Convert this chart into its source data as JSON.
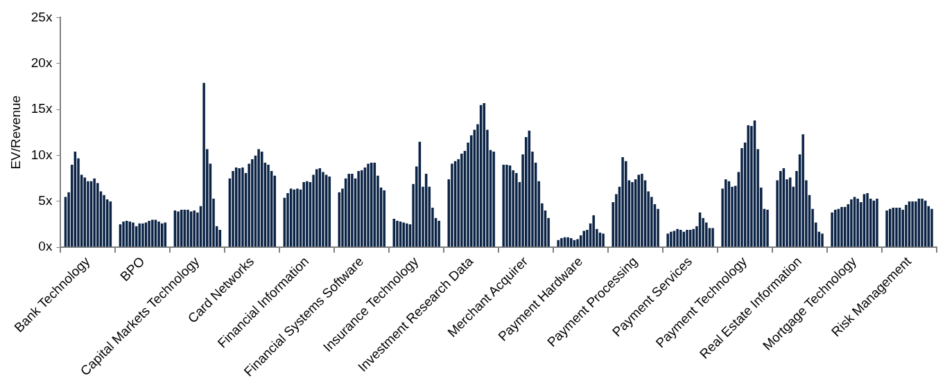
{
  "chart_data": {
    "type": "bar",
    "ylabel": "EV/Revenue",
    "categories": [
      "Bank Technology",
      "BPO",
      "Capital Markets Technology",
      "Card Networks",
      "Financial Information",
      "Financial Systems Software",
      "Insurance Technology",
      "Investment Research Data",
      "Merchant Acquirer",
      "Payment Hardware",
      "Payment Processing",
      "Payment Services",
      "Payment Technology",
      "Real Estate Information",
      "Mortgage Technology",
      "Risk Management"
    ],
    "ylim": [
      0,
      25
    ],
    "yticks": [
      {
        "value": 0,
        "label": "0x"
      },
      {
        "value": 5,
        "label": "5x"
      },
      {
        "value": 10,
        "label": "10x"
      },
      {
        "value": 15,
        "label": "15x"
      },
      {
        "value": 20,
        "label": "20x"
      },
      {
        "value": 25,
        "label": "25x"
      }
    ],
    "grid": false,
    "legend": false,
    "series": [
      {
        "color": "#0b2345",
        "values": [
          5.5,
          2.5,
          4.0,
          7.5,
          5.4,
          6.0,
          3.1,
          7.4,
          9.0,
          0.8,
          4.9,
          1.5,
          6.4,
          7.3,
          3.8,
          4.0
        ]
      },
      {
        "color": "#0b2345",
        "values": [
          6.0,
          2.8,
          3.9,
          8.3,
          5.9,
          6.4,
          2.9,
          9.1,
          9.0,
          1.0,
          5.8,
          1.7,
          7.4,
          8.3,
          4.1,
          4.2
        ]
      },
      {
        "color": "#0b2345",
        "values": [
          9.0,
          2.9,
          4.1,
          8.7,
          6.4,
          7.5,
          2.8,
          9.4,
          8.9,
          1.1,
          6.6,
          1.8,
          7.2,
          8.6,
          4.2,
          4.3
        ]
      },
      {
        "color": "#0b2345",
        "values": [
          10.4,
          2.8,
          4.1,
          8.6,
          6.3,
          8.0,
          2.7,
          9.6,
          8.4,
          1.1,
          9.8,
          2.0,
          6.6,
          7.4,
          4.4,
          4.3
        ]
      },
      {
        "color": "#0b2345",
        "values": [
          9.7,
          2.7,
          4.1,
          8.7,
          6.4,
          8.0,
          2.6,
          10.2,
          8.1,
          1.0,
          9.4,
          1.9,
          6.7,
          7.6,
          4.4,
          4.3
        ]
      },
      {
        "color": "#0b2345",
        "values": [
          7.9,
          2.3,
          3.9,
          8.1,
          6.3,
          7.5,
          2.5,
          10.5,
          7.1,
          0.8,
          7.3,
          1.7,
          8.2,
          6.6,
          4.7,
          4.1
        ]
      },
      {
        "color": "#0b2345",
        "values": [
          7.6,
          2.6,
          4.0,
          9.1,
          7.1,
          8.3,
          6.9,
          11.4,
          10.1,
          0.9,
          7.1,
          1.9,
          10.8,
          8.3,
          5.2,
          4.6
        ]
      },
      {
        "color": "#0b2345",
        "values": [
          7.2,
          2.6,
          3.8,
          9.6,
          7.2,
          8.4,
          8.8,
          12.2,
          12.0,
          1.3,
          7.4,
          1.9,
          11.4,
          10.1,
          5.5,
          5.0
        ]
      },
      {
        "color": "#0b2345",
        "values": [
          7.2,
          2.7,
          4.5,
          10.0,
          7.1,
          8.7,
          11.5,
          12.8,
          12.7,
          1.8,
          7.9,
          2.0,
          13.3,
          12.3,
          5.3,
          5.0
        ]
      },
      {
        "color": "#0b2345",
        "values": [
          7.5,
          2.9,
          17.9,
          10.7,
          7.9,
          9.1,
          6.6,
          13.4,
          10.4,
          1.9,
          8.0,
          2.3,
          13.2,
          7.3,
          4.9,
          5.0
        ]
      },
      {
        "color": "#0b2345",
        "values": [
          7.0,
          3.0,
          10.7,
          10.4,
          8.5,
          9.2,
          8.0,
          15.5,
          9.2,
          2.6,
          7.3,
          3.8,
          13.8,
          5.7,
          5.8,
          5.3
        ]
      },
      {
        "color": "#0b2345",
        "values": [
          6.1,
          3.0,
          9.1,
          9.2,
          8.6,
          9.2,
          6.6,
          15.7,
          7.2,
          3.5,
          6.1,
          3.2,
          10.7,
          4.2,
          5.9,
          5.3
        ]
      },
      {
        "color": "#0b2345",
        "values": [
          5.7,
          2.8,
          5.3,
          9.0,
          8.2,
          7.8,
          4.3,
          12.8,
          4.8,
          2.0,
          5.5,
          2.7,
          6.5,
          2.7,
          5.3,
          5.1
        ]
      },
      {
        "color": "#0b2345",
        "values": [
          5.2,
          2.6,
          2.3,
          8.3,
          7.9,
          6.5,
          3.2,
          10.6,
          4.0,
          1.6,
          4.7,
          2.1,
          4.2,
          1.7,
          5.1,
          4.5
        ]
      },
      {
        "color": "#0b2345",
        "values": [
          5.0,
          2.7,
          1.9,
          7.8,
          7.7,
          6.2,
          2.9,
          10.4,
          3.2,
          1.5,
          4.2,
          2.1,
          4.1,
          1.5,
          5.3,
          4.2
        ]
      }
    ]
  }
}
